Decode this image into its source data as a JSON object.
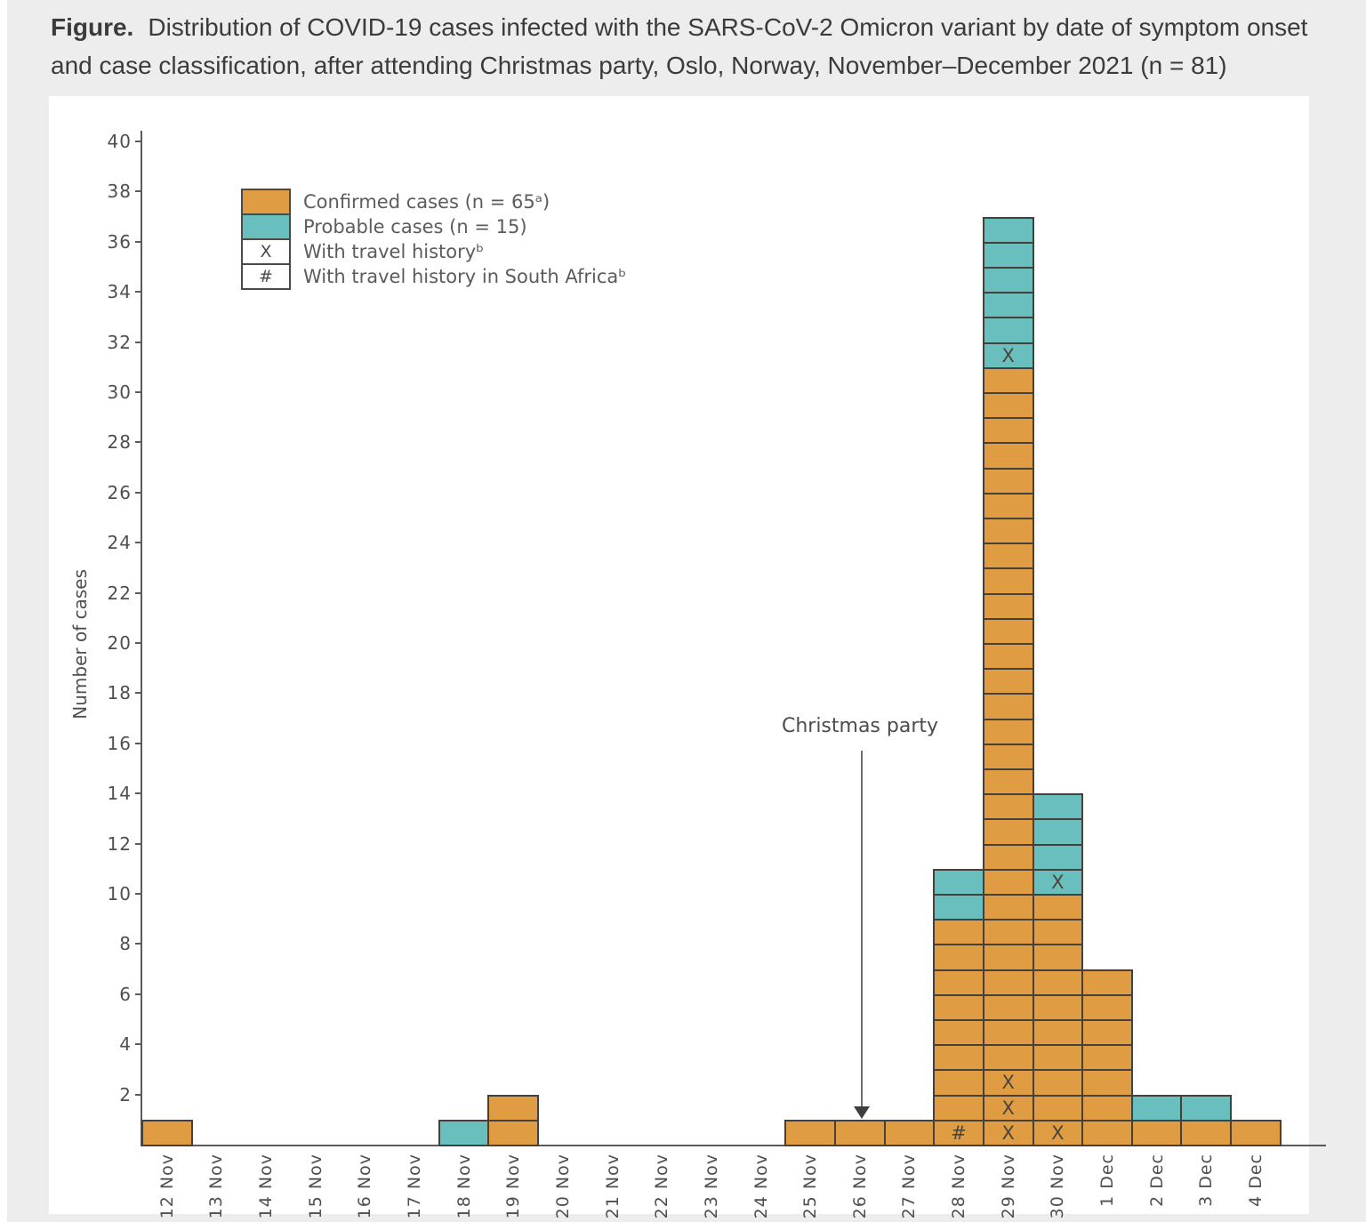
{
  "page": {
    "background_color": "#ecedec",
    "panel_color": "#ffffff"
  },
  "caption": {
    "label": "Figure.",
    "text": "Distribution of COVID-19 cases infected with the SARS-CoV-2 Omicron variant by date of symptom onset and case classification, after attending Christmas party, Oslo, Norway, November–December 2021 (n = 81)"
  },
  "chart_data": {
    "type": "bar",
    "subtype": "stacked-unit-case epidemic curve (each cell = 1 case)",
    "ylabel": "Number of cases",
    "xlabel": "",
    "ylim": [
      0,
      40
    ],
    "y_ticks": [
      2,
      4,
      6,
      8,
      10,
      12,
      14,
      16,
      18,
      20,
      22,
      24,
      26,
      28,
      30,
      32,
      34,
      36,
      38,
      40
    ],
    "grid": false,
    "legend_position": "upper-left-inside",
    "colors": {
      "confirmed": "#e09c43",
      "probable": "#68bfbd",
      "cell_border": "#45413a",
      "axis": "#5a5b5e"
    },
    "legend": [
      {
        "swatch": "confirmed",
        "label": "Confirmed cases (n = 65ᵃ)"
      },
      {
        "swatch": "probable",
        "label": "Probable cases (n = 15)"
      },
      {
        "swatch": "X",
        "label": "With travel historyᵇ"
      },
      {
        "swatch": "#",
        "label": "With travel history in South Africaᵇ"
      }
    ],
    "annotation": {
      "text": "Christmas party",
      "points_to_date": "26 Nov"
    },
    "series": [
      {
        "name": "Confirmed cases",
        "values": [
          1,
          0,
          0,
          0,
          0,
          0,
          0,
          2,
          0,
          0,
          0,
          0,
          0,
          1,
          1,
          1,
          9,
          31,
          10,
          7,
          1,
          1,
          1
        ]
      },
      {
        "name": "Probable cases",
        "values": [
          0,
          0,
          0,
          0,
          0,
          0,
          1,
          0,
          0,
          0,
          0,
          0,
          0,
          0,
          0,
          0,
          2,
          6,
          4,
          0,
          1,
          1,
          0
        ]
      }
    ],
    "categories": [
      "12 Nov",
      "13 Nov",
      "14 Nov",
      "15 Nov",
      "16 Nov",
      "17 Nov",
      "18 Nov",
      "19 Nov",
      "20 Nov",
      "21 Nov",
      "22 Nov",
      "23 Nov",
      "24 Nov",
      "25 Nov",
      "26 Nov",
      "27 Nov",
      "28 Nov",
      "29 Nov",
      "30 Nov",
      "1 Dec",
      "2 Dec",
      "3 Dec",
      "4 Dec"
    ],
    "columns": [
      {
        "date": "12 Nov",
        "confirmed": 1,
        "probable": 0,
        "marks": []
      },
      {
        "date": "13 Nov",
        "confirmed": 0,
        "probable": 0,
        "marks": []
      },
      {
        "date": "14 Nov",
        "confirmed": 0,
        "probable": 0,
        "marks": []
      },
      {
        "date": "15 Nov",
        "confirmed": 0,
        "probable": 0,
        "marks": []
      },
      {
        "date": "16 Nov",
        "confirmed": 0,
        "probable": 0,
        "marks": []
      },
      {
        "date": "17 Nov",
        "confirmed": 0,
        "probable": 0,
        "marks": []
      },
      {
        "date": "18 Nov",
        "confirmed": 0,
        "probable": 1,
        "marks": []
      },
      {
        "date": "19 Nov",
        "confirmed": 2,
        "probable": 0,
        "marks": []
      },
      {
        "date": "20 Nov",
        "confirmed": 0,
        "probable": 0,
        "marks": []
      },
      {
        "date": "21 Nov",
        "confirmed": 0,
        "probable": 0,
        "marks": []
      },
      {
        "date": "22 Nov",
        "confirmed": 0,
        "probable": 0,
        "marks": []
      },
      {
        "date": "23 Nov",
        "confirmed": 0,
        "probable": 0,
        "marks": []
      },
      {
        "date": "24 Nov",
        "confirmed": 0,
        "probable": 0,
        "marks": []
      },
      {
        "date": "25 Nov",
        "confirmed": 1,
        "probable": 0,
        "marks": []
      },
      {
        "date": "26 Nov",
        "confirmed": 1,
        "probable": 0,
        "marks": []
      },
      {
        "date": "27 Nov",
        "confirmed": 1,
        "probable": 0,
        "marks": []
      },
      {
        "date": "28 Nov",
        "confirmed": 9,
        "probable": 2,
        "marks": [
          {
            "cell": 1,
            "symbol": "#"
          }
        ]
      },
      {
        "date": "29 Nov",
        "confirmed": 31,
        "probable": 6,
        "marks": [
          {
            "cell": 1,
            "symbol": "X"
          },
          {
            "cell": 2,
            "symbol": "X"
          },
          {
            "cell": 3,
            "symbol": "X"
          },
          {
            "cell": 32,
            "symbol": "X"
          }
        ]
      },
      {
        "date": "30 Nov",
        "confirmed": 10,
        "probable": 4,
        "marks": [
          {
            "cell": 1,
            "symbol": "X"
          },
          {
            "cell": 11,
            "symbol": "X"
          }
        ]
      },
      {
        "date": "1 Dec",
        "confirmed": 7,
        "probable": 0,
        "marks": []
      },
      {
        "date": "2 Dec",
        "confirmed": 1,
        "probable": 1,
        "marks": []
      },
      {
        "date": "3 Dec",
        "confirmed": 1,
        "probable": 1,
        "marks": []
      },
      {
        "date": "4 Dec",
        "confirmed": 1,
        "probable": 0,
        "marks": []
      }
    ]
  }
}
